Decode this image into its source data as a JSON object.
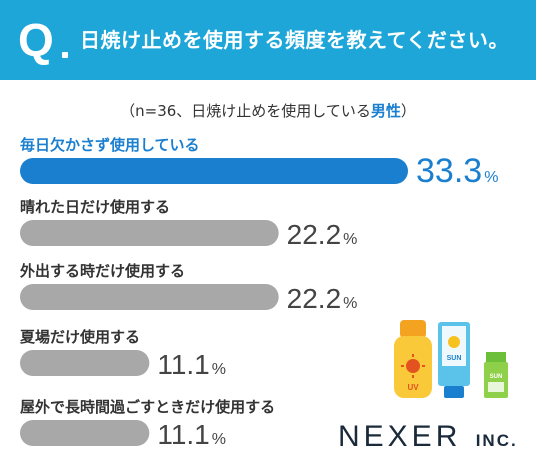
{
  "header": {
    "q_mark": "Q",
    "question": "日焼け止めを使用する頻度を教えてください。"
  },
  "subtitle": {
    "prefix": "（n=36、日焼け止めを使用している",
    "highlight": "男性",
    "suffix": "）"
  },
  "chart_data": {
    "type": "bar",
    "orientation": "horizontal",
    "categories": [
      "毎日欠かさず使用している",
      "晴れた日だけ使用する",
      "外出する時だけ使用する",
      "夏場だけ使用する",
      "屋外で長時間過ごすときだけ使用する"
    ],
    "values": [
      33.3,
      22.2,
      22.2,
      11.1,
      11.1
    ],
    "value_labels": [
      "33.3",
      "22.2",
      "22.2",
      "11.1",
      "11.1"
    ],
    "unit": "%",
    "colors": {
      "highlight": "#1b7fd0",
      "default": "#a8a8a8"
    }
  },
  "brand": {
    "name": "NEXER",
    "suffix": "INC."
  },
  "illustration": {
    "bottle_label": "UV",
    "tube_label": "SUN",
    "small_label": "SUN"
  }
}
